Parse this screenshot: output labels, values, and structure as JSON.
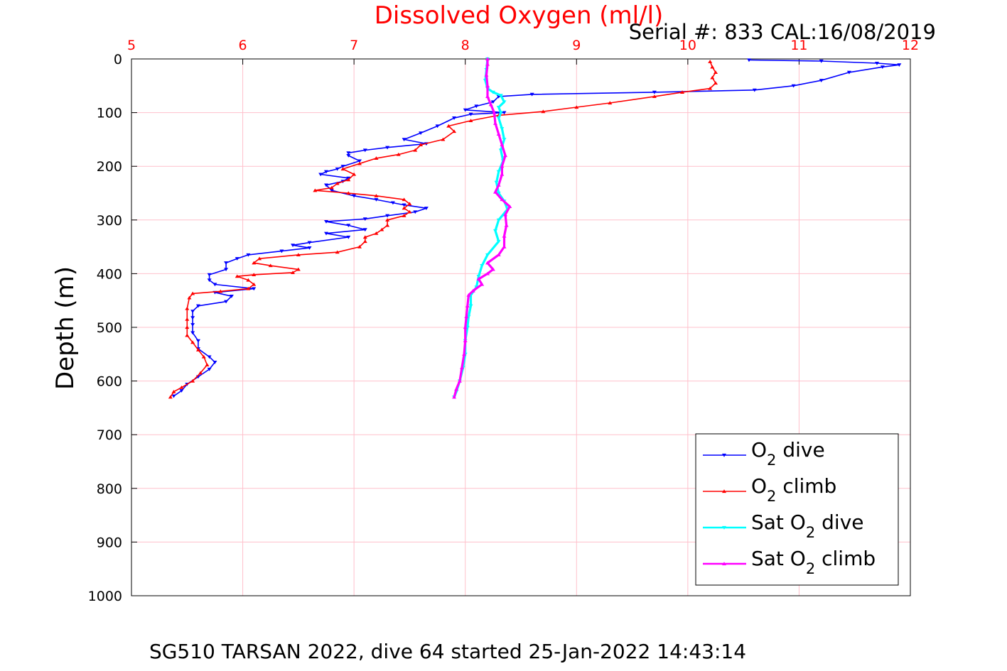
{
  "chart_data": {
    "type": "line",
    "title": "Dissolved Oxygen (ml/l)",
    "subtitle": "Serial #: 833  CAL:16/08/2019",
    "caption": "SG510 TARSAN 2022, dive 64 started 25-Jan-2022 14:43:14",
    "xlabel": "",
    "ylabel": "Depth (m)",
    "xlim": [
      5,
      12
    ],
    "ylim": [
      0,
      1000
    ],
    "y_reversed": true,
    "x_axis_position": "top",
    "x_ticks": [
      "5",
      "6",
      "7",
      "8",
      "9",
      "10",
      "11",
      "12"
    ],
    "y_ticks": [
      "0",
      "100",
      "200",
      "300",
      "400",
      "500",
      "600",
      "700",
      "800",
      "900",
      "1000"
    ],
    "grid": true,
    "legend_position": "bottom-right",
    "series": [
      {
        "name": "O2 dive",
        "color": "#0000ff",
        "marker": "triangle-down",
        "points": [
          [
            10.55,
            2
          ],
          [
            11.2,
            4
          ],
          [
            11.7,
            8
          ],
          [
            11.9,
            11
          ],
          [
            11.75,
            15
          ],
          [
            11.45,
            25
          ],
          [
            11.2,
            40
          ],
          [
            10.95,
            50
          ],
          [
            10.6,
            58
          ],
          [
            9.7,
            62
          ],
          [
            8.6,
            66
          ],
          [
            8.3,
            70
          ],
          [
            8.25,
            80
          ],
          [
            8.1,
            88
          ],
          [
            8.0,
            95
          ],
          [
            8.35,
            100
          ],
          [
            8.05,
            103
          ],
          [
            7.9,
            110
          ],
          [
            7.75,
            125
          ],
          [
            7.6,
            138
          ],
          [
            7.45,
            150
          ],
          [
            7.65,
            158
          ],
          [
            7.3,
            165
          ],
          [
            7.1,
            170
          ],
          [
            6.95,
            175
          ],
          [
            6.95,
            180
          ],
          [
            7.05,
            190
          ],
          [
            6.9,
            200
          ],
          [
            6.85,
            205
          ],
          [
            6.75,
            210
          ],
          [
            6.7,
            215
          ],
          [
            6.95,
            222
          ],
          [
            6.9,
            228
          ],
          [
            6.75,
            235
          ],
          [
            6.8,
            245
          ],
          [
            7.0,
            255
          ],
          [
            7.2,
            262
          ],
          [
            7.35,
            268
          ],
          [
            7.45,
            272
          ],
          [
            7.65,
            278
          ],
          [
            7.55,
            285
          ],
          [
            7.3,
            292
          ],
          [
            7.1,
            298
          ],
          [
            6.75,
            303
          ],
          [
            6.95,
            310
          ],
          [
            7.1,
            318
          ],
          [
            6.75,
            325
          ],
          [
            6.95,
            332
          ],
          [
            6.6,
            342
          ],
          [
            6.45,
            347
          ],
          [
            6.6,
            352
          ],
          [
            6.35,
            358
          ],
          [
            6.05,
            365
          ],
          [
            5.95,
            372
          ],
          [
            5.85,
            380
          ],
          [
            5.85,
            392
          ],
          [
            5.7,
            402
          ],
          [
            5.7,
            412
          ],
          [
            5.75,
            420
          ],
          [
            6.1,
            428
          ],
          [
            5.75,
            435
          ],
          [
            5.9,
            442
          ],
          [
            5.85,
            452
          ],
          [
            5.6,
            460
          ],
          [
            5.55,
            470
          ],
          [
            5.55,
            482
          ],
          [
            5.55,
            495
          ],
          [
            5.55,
            510
          ],
          [
            5.6,
            525
          ],
          [
            5.6,
            540
          ],
          [
            5.7,
            555
          ],
          [
            5.75,
            565
          ],
          [
            5.7,
            578
          ],
          [
            5.6,
            592
          ],
          [
            5.5,
            606
          ],
          [
            5.45,
            618
          ],
          [
            5.38,
            628
          ]
        ]
      },
      {
        "name": "O2 climb",
        "color": "#ff0000",
        "marker": "triangle-up",
        "points": [
          [
            5.35,
            630
          ],
          [
            5.38,
            620
          ],
          [
            5.45,
            612
          ],
          [
            5.55,
            600
          ],
          [
            5.62,
            585
          ],
          [
            5.68,
            570
          ],
          [
            5.65,
            555
          ],
          [
            5.6,
            542
          ],
          [
            5.55,
            528
          ],
          [
            5.5,
            515
          ],
          [
            5.5,
            500
          ],
          [
            5.5,
            485
          ],
          [
            5.5,
            465
          ],
          [
            5.52,
            445
          ],
          [
            5.55,
            437
          ],
          [
            5.8,
            433
          ],
          [
            6.05,
            428
          ],
          [
            6.1,
            420
          ],
          [
            6.05,
            412
          ],
          [
            5.95,
            405
          ],
          [
            6.1,
            402
          ],
          [
            6.45,
            398
          ],
          [
            6.5,
            392
          ],
          [
            6.25,
            385
          ],
          [
            6.1,
            380
          ],
          [
            6.15,
            372
          ],
          [
            6.5,
            365
          ],
          [
            6.85,
            360
          ],
          [
            7.05,
            350
          ],
          [
            7.1,
            340
          ],
          [
            7.1,
            332
          ],
          [
            7.2,
            325
          ],
          [
            7.25,
            318
          ],
          [
            7.3,
            310
          ],
          [
            7.3,
            300
          ],
          [
            7.45,
            292
          ],
          [
            7.5,
            285
          ],
          [
            7.45,
            278
          ],
          [
            7.5,
            270
          ],
          [
            7.45,
            262
          ],
          [
            7.2,
            255
          ],
          [
            6.95,
            250
          ],
          [
            6.65,
            245
          ],
          [
            6.8,
            240
          ],
          [
            6.85,
            232
          ],
          [
            6.95,
            225
          ],
          [
            7.0,
            215
          ],
          [
            6.9,
            205
          ],
          [
            7.05,
            195
          ],
          [
            7.2,
            185
          ],
          [
            7.4,
            178
          ],
          [
            7.55,
            170
          ],
          [
            7.6,
            160
          ],
          [
            7.8,
            150
          ],
          [
            7.9,
            135
          ],
          [
            7.85,
            125
          ],
          [
            8.05,
            115
          ],
          [
            8.3,
            105
          ],
          [
            8.7,
            98
          ],
          [
            9.0,
            90
          ],
          [
            9.3,
            82
          ],
          [
            9.7,
            70
          ],
          [
            9.95,
            62
          ],
          [
            10.2,
            55
          ],
          [
            10.25,
            45
          ],
          [
            10.22,
            35
          ],
          [
            10.25,
            25
          ],
          [
            10.22,
            15
          ],
          [
            10.2,
            5
          ]
        ]
      },
      {
        "name": "Sat O2 dive",
        "color": "#00ffff",
        "marker": "triangle-down",
        "points": [
          [
            8.2,
            0
          ],
          [
            8.19,
            20
          ],
          [
            8.18,
            40
          ],
          [
            8.2,
            55
          ],
          [
            8.25,
            62
          ],
          [
            8.32,
            68
          ],
          [
            8.35,
            80
          ],
          [
            8.3,
            90
          ],
          [
            8.32,
            100
          ],
          [
            8.3,
            110
          ],
          [
            8.33,
            130
          ],
          [
            8.35,
            150
          ],
          [
            8.32,
            170
          ],
          [
            8.34,
            190
          ],
          [
            8.3,
            210
          ],
          [
            8.28,
            230
          ],
          [
            8.3,
            250
          ],
          [
            8.35,
            265
          ],
          [
            8.38,
            280
          ],
          [
            8.3,
            300
          ],
          [
            8.27,
            320
          ],
          [
            8.3,
            340
          ],
          [
            8.2,
            365
          ],
          [
            8.15,
            385
          ],
          [
            8.12,
            405
          ],
          [
            8.1,
            425
          ],
          [
            8.05,
            440
          ],
          [
            8.05,
            460
          ],
          [
            8.03,
            480
          ],
          [
            8.02,
            500
          ],
          [
            8.0,
            525
          ],
          [
            8.0,
            550
          ],
          [
            7.98,
            575
          ],
          [
            7.95,
            600
          ],
          [
            7.92,
            620
          ],
          [
            7.9,
            630
          ]
        ]
      },
      {
        "name": "Sat O2 climb",
        "color": "#ff00ff",
        "marker": "triangle-up",
        "points": [
          [
            7.9,
            630
          ],
          [
            7.92,
            615
          ],
          [
            7.95,
            600
          ],
          [
            7.97,
            575
          ],
          [
            7.99,
            550
          ],
          [
            8.0,
            525
          ],
          [
            8.0,
            500
          ],
          [
            8.01,
            480
          ],
          [
            8.02,
            460
          ],
          [
            8.03,
            440
          ],
          [
            8.07,
            432
          ],
          [
            8.15,
            420
          ],
          [
            8.12,
            410
          ],
          [
            8.2,
            400
          ],
          [
            8.25,
            392
          ],
          [
            8.2,
            380
          ],
          [
            8.3,
            365
          ],
          [
            8.35,
            350
          ],
          [
            8.35,
            330
          ],
          [
            8.37,
            310
          ],
          [
            8.36,
            290
          ],
          [
            8.4,
            275
          ],
          [
            8.33,
            262
          ],
          [
            8.27,
            248
          ],
          [
            8.3,
            235
          ],
          [
            8.33,
            215
          ],
          [
            8.33,
            200
          ],
          [
            8.36,
            180
          ],
          [
            8.33,
            160
          ],
          [
            8.3,
            140
          ],
          [
            8.27,
            120
          ],
          [
            8.26,
            100
          ],
          [
            8.23,
            85
          ],
          [
            8.2,
            70
          ],
          [
            8.2,
            50
          ],
          [
            8.19,
            30
          ],
          [
            8.2,
            10
          ],
          [
            8.2,
            0
          ]
        ]
      }
    ]
  },
  "legend": {
    "items": [
      {
        "pre": "O",
        "sub": "2",
        "post": " dive"
      },
      {
        "pre": "O",
        "sub": "2",
        "post": " climb"
      },
      {
        "pre": "Sat O",
        "sub": "2",
        "post": " dive"
      },
      {
        "pre": "Sat O",
        "sub": "2",
        "post": " climb"
      }
    ]
  },
  "colors": {
    "title": "#ff0000",
    "x_ticks": "#ff0000",
    "grid": "#ffc0cb",
    "axis": "#000000"
  }
}
